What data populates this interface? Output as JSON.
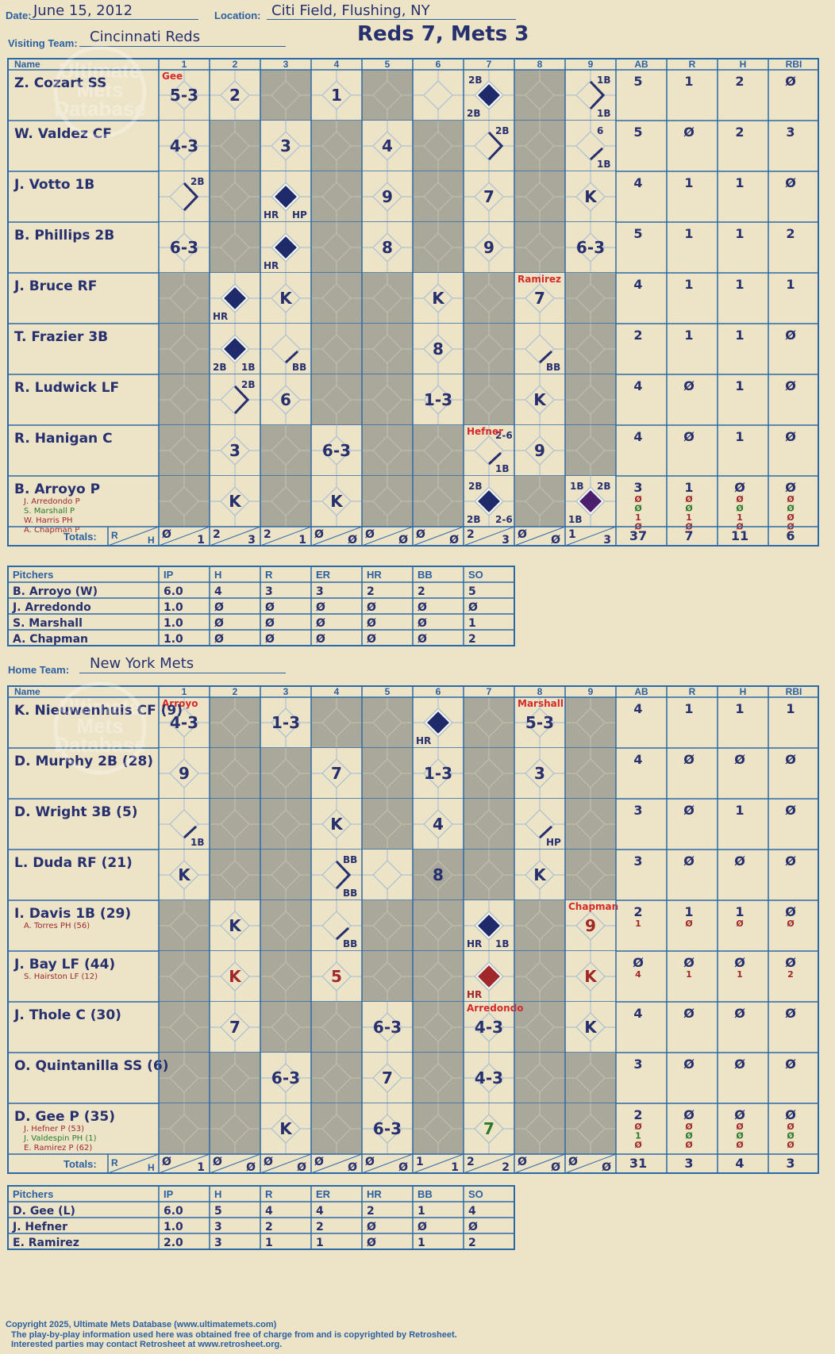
{
  "header": {
    "date_label": "Date:",
    "date": "June 15, 2012",
    "location_label": "Location:",
    "location": "Citi Field, Flushing, NY",
    "score_title": "Reds 7, Mets 3"
  },
  "col_labels": {
    "name": "Name",
    "innings": [
      "1",
      "2",
      "3",
      "4",
      "5",
      "6",
      "7",
      "8",
      "9"
    ],
    "stats": [
      "AB",
      "R",
      "H",
      "RBI"
    ],
    "totals": "Totals:",
    "totals_r": "R",
    "totals_h": "H"
  },
  "pitcher_cols": [
    "Pitchers",
    "IP",
    "H",
    "R",
    "ER",
    "HR",
    "BB",
    "SO"
  ],
  "watermark": "Ultimate Mets Database",
  "visitor": {
    "team_label": "Visiting Team:",
    "team": "Cincinnati Reds",
    "batters": [
      {
        "name": "Z. Cozart SS",
        "subs": [],
        "stats": [
          [
            "5",
            "1",
            "2",
            "Ø"
          ]
        ],
        "cells": [
          {
            "i": 0,
            "t": "5-3",
            "note": "Gee"
          },
          {
            "i": 1,
            "t": "2"
          },
          {
            "i": 3,
            "t": "1"
          },
          {
            "i": 6,
            "diamond": "navy",
            "tl": "2B",
            "bl": "2B"
          },
          {
            "i": 8,
            "path": "r",
            "tr": "1B",
            "br": "1B"
          }
        ]
      },
      {
        "name": "W. Valdez CF",
        "subs": [],
        "stats": [
          [
            "5",
            "Ø",
            "2",
            "3"
          ]
        ],
        "cells": [
          {
            "i": 0,
            "t": "4-3"
          },
          {
            "i": 2,
            "t": "3"
          },
          {
            "i": 4,
            "t": "4"
          },
          {
            "i": 6,
            "path": "r",
            "tr": "2B"
          },
          {
            "i": 8,
            "path": "b",
            "tr": "6",
            "br": "1B"
          }
        ]
      },
      {
        "name": "J. Votto 1B",
        "subs": [],
        "stats": [
          [
            "4",
            "1",
            "1",
            "Ø"
          ]
        ],
        "cells": [
          {
            "i": 0,
            "path": "r",
            "tr": "2B"
          },
          {
            "i": 2,
            "diamond": "navy",
            "bl": "HR",
            "br": "HP"
          },
          {
            "i": 4,
            "t": "9"
          },
          {
            "i": 6,
            "t": "7"
          },
          {
            "i": 8,
            "t": "K"
          }
        ]
      },
      {
        "name": "B. Phillips 2B",
        "subs": [],
        "stats": [
          [
            "5",
            "1",
            "1",
            "2"
          ]
        ],
        "cells": [
          {
            "i": 0,
            "t": "6-3"
          },
          {
            "i": 2,
            "diamond": "navy",
            "bl": "HR"
          },
          {
            "i": 4,
            "t": "8"
          },
          {
            "i": 6,
            "t": "9"
          },
          {
            "i": 8,
            "t": "6-3"
          }
        ]
      },
      {
        "name": "J. Bruce RF",
        "subs": [],
        "stats": [
          [
            "4",
            "1",
            "1",
            "1"
          ]
        ],
        "cells": [
          {
            "i": 1,
            "diamond": "navy",
            "bl": "HR"
          },
          {
            "i": 2,
            "t": "K"
          },
          {
            "i": 5,
            "t": "K"
          },
          {
            "i": 7,
            "t": "7",
            "note": "Ramirez"
          }
        ]
      },
      {
        "name": "T. Frazier 3B",
        "subs": [],
        "stats": [
          [
            "2",
            "1",
            "1",
            "Ø"
          ]
        ],
        "cells": [
          {
            "i": 1,
            "diamond": "navy",
            "bl": "2B",
            "br": "1B"
          },
          {
            "i": 2,
            "path": "b",
            "br": "BB"
          },
          {
            "i": 5,
            "t": "8"
          },
          {
            "i": 7,
            "path": "b",
            "br": "BB"
          }
        ]
      },
      {
        "name": "R. Ludwick LF",
        "subs": [],
        "stats": [
          [
            "4",
            "Ø",
            "1",
            "Ø"
          ]
        ],
        "cells": [
          {
            "i": 1,
            "path": "r",
            "tr": "2B"
          },
          {
            "i": 2,
            "t": "6"
          },
          {
            "i": 5,
            "t": "1-3"
          },
          {
            "i": 7,
            "t": "K"
          }
        ]
      },
      {
        "name": "R. Hanigan C",
        "subs": [],
        "stats": [
          [
            "4",
            "Ø",
            "1",
            "Ø"
          ]
        ],
        "cells": [
          {
            "i": 1,
            "t": "3"
          },
          {
            "i": 3,
            "t": "6-3"
          },
          {
            "i": 6,
            "path": "b",
            "tr": "2-6",
            "br": "1B",
            "note": "Hefner"
          },
          {
            "i": 7,
            "t": "9"
          }
        ]
      },
      {
        "name": "B. Arroyo P",
        "subs": [
          {
            "name": "J. Arredondo P",
            "color": "#a0282a"
          },
          {
            "name": "S. Marshall P",
            "color": "#2d7a2e"
          },
          {
            "name": "W. Harris PH",
            "color": "#a0282a"
          },
          {
            "name": "A. Chapman P",
            "color": "#a0282a"
          }
        ],
        "stats": [
          [
            "3",
            "1",
            "Ø",
            "Ø"
          ],
          [
            "Ø",
            "Ø",
            "Ø",
            "Ø"
          ],
          [
            "Ø",
            "Ø",
            "Ø",
            "Ø"
          ],
          [
            "1",
            "1",
            "1",
            "Ø"
          ],
          [
            "Ø",
            "Ø",
            "Ø",
            "Ø"
          ]
        ],
        "cells": [
          {
            "i": 1,
            "t": "K"
          },
          {
            "i": 3,
            "t": "K"
          },
          {
            "i": 6,
            "diamond": "navy",
            "tl": "2B",
            "bl": "2B",
            "br": "2-6"
          },
          {
            "i": 8,
            "diamond": "purple",
            "tl": "1B",
            "tr": "2B",
            "bl": "1B"
          }
        ]
      }
    ],
    "shaded": [
      [
        2,
        4,
        7
      ],
      [
        1,
        3,
        5,
        7
      ],
      [
        1,
        3,
        5,
        7
      ],
      [
        1,
        3,
        5,
        7
      ],
      [
        0,
        3,
        4,
        6,
        8
      ],
      [
        0,
        3,
        4,
        6,
        8
      ],
      [
        0,
        3,
        4,
        6,
        8
      ],
      [
        0,
        2,
        4,
        5,
        8
      ],
      [
        0,
        2,
        4,
        5,
        7
      ]
    ],
    "totals": [
      [
        "Ø",
        "1"
      ],
      [
        "2",
        "3"
      ],
      [
        "2",
        "1"
      ],
      [
        "Ø",
        "Ø"
      ],
      [
        "Ø",
        "Ø"
      ],
      [
        "Ø",
        "Ø"
      ],
      [
        "2",
        "3"
      ],
      [
        "Ø",
        "Ø"
      ],
      [
        "1",
        "3"
      ]
    ],
    "totals_stats": [
      "37",
      "7",
      "11",
      "6"
    ],
    "pitchers": [
      [
        "B. Arroyo (W)",
        "6.0",
        "4",
        "3",
        "3",
        "2",
        "2",
        "5"
      ],
      [
        "J. Arredondo",
        "1.0",
        "Ø",
        "Ø",
        "Ø",
        "Ø",
        "Ø",
        "Ø"
      ],
      [
        "S. Marshall",
        "1.0",
        "Ø",
        "Ø",
        "Ø",
        "Ø",
        "Ø",
        "1"
      ],
      [
        "A. Chapman",
        "1.0",
        "Ø",
        "Ø",
        "Ø",
        "Ø",
        "Ø",
        "2"
      ]
    ]
  },
  "home": {
    "team_label": "Home Team:",
    "team": "New York Mets",
    "batters": [
      {
        "name": "K. Nieuwenhuis CF (9)",
        "subs": [],
        "stats": [
          [
            "4",
            "1",
            "1",
            "1"
          ]
        ],
        "cells": [
          {
            "i": 0,
            "t": "4-3",
            "note": "Arroyo"
          },
          {
            "i": 2,
            "t": "1-3"
          },
          {
            "i": 5,
            "diamond": "navy",
            "bl": "HR"
          },
          {
            "i": 7,
            "t": "5-3",
            "note": "Marshall"
          }
        ]
      },
      {
        "name": "D. Murphy 2B (28)",
        "subs": [],
        "stats": [
          [
            "4",
            "Ø",
            "Ø",
            "Ø"
          ]
        ],
        "cells": [
          {
            "i": 0,
            "t": "9"
          },
          {
            "i": 3,
            "t": "7"
          },
          {
            "i": 5,
            "t": "1-3"
          },
          {
            "i": 7,
            "t": "3"
          }
        ]
      },
      {
        "name": "D. Wright 3B (5)",
        "subs": [],
        "stats": [
          [
            "3",
            "Ø",
            "1",
            "Ø"
          ]
        ],
        "cells": [
          {
            "i": 0,
            "path": "b",
            "br": "1B"
          },
          {
            "i": 3,
            "t": "K"
          },
          {
            "i": 5,
            "t": "4"
          },
          {
            "i": 7,
            "path": "b",
            "br": "HP"
          }
        ]
      },
      {
        "name": "L. Duda RF (21)",
        "subs": [],
        "stats": [
          [
            "3",
            "Ø",
            "Ø",
            "Ø"
          ]
        ],
        "cells": [
          {
            "i": 0,
            "t": "K"
          },
          {
            "i": 3,
            "path": "r",
            "tr": "BB",
            "br": "BB"
          },
          {
            "i": 5,
            "t": "8"
          },
          {
            "i": 7,
            "t": "K"
          }
        ]
      },
      {
        "name": "I. Davis 1B (29)",
        "subs": [
          {
            "name": "A. Torres PH (56)",
            "color": "#a0282a"
          }
        ],
        "stats": [
          [
            "2",
            "1",
            "1",
            "Ø"
          ],
          [
            "1",
            "Ø",
            "Ø",
            "Ø"
          ]
        ],
        "cells": [
          {
            "i": 1,
            "t": "K"
          },
          {
            "i": 3,
            "path": "b",
            "br": "BB"
          },
          {
            "i": 6,
            "diamond": "navy",
            "bl": "HR",
            "br": "1B"
          },
          {
            "i": 8,
            "t": "9",
            "note": "Chapman",
            "color": "#a0282a"
          }
        ]
      },
      {
        "name": "J. Bay LF (44)",
        "subs": [
          {
            "name": "S. Hairston LF (12)",
            "color": "#a0282a"
          }
        ],
        "stats": [
          [
            "Ø",
            "Ø",
            "Ø",
            "Ø"
          ],
          [
            "4",
            "1",
            "1",
            "2"
          ]
        ],
        "cells": [
          {
            "i": 1,
            "t": "K",
            "color": "#a0282a"
          },
          {
            "i": 3,
            "t": "5",
            "color": "#a0282a"
          },
          {
            "i": 6,
            "diamond": "red",
            "bl": "HR",
            "blcolor": "#a0282a"
          },
          {
            "i": 8,
            "t": "K",
            "color": "#a0282a"
          }
        ]
      },
      {
        "name": "J. Thole C (30)",
        "subs": [],
        "stats": [
          [
            "4",
            "Ø",
            "Ø",
            "Ø"
          ]
        ],
        "cells": [
          {
            "i": 1,
            "t": "7"
          },
          {
            "i": 4,
            "t": "6-3"
          },
          {
            "i": 6,
            "t": "4-3",
            "note": "Arredondo"
          },
          {
            "i": 8,
            "t": "K"
          }
        ]
      },
      {
        "name": "O. Quintanilla SS (6)",
        "subs": [],
        "stats": [
          [
            "3",
            "Ø",
            "Ø",
            "Ø"
          ]
        ],
        "cells": [
          {
            "i": 2,
            "t": "6-3"
          },
          {
            "i": 4,
            "t": "7"
          },
          {
            "i": 6,
            "t": "4-3"
          }
        ]
      },
      {
        "name": "D. Gee P (35)",
        "subs": [
          {
            "name": "J. Hefner P (53)",
            "color": "#a0282a"
          },
          {
            "name": "J. Valdespin PH (1)",
            "color": "#2d7a2e"
          },
          {
            "name": "E. Ramirez P (62)",
            "color": "#a0282a"
          }
        ],
        "stats": [
          [
            "2",
            "Ø",
            "Ø",
            "Ø"
          ],
          [
            "Ø",
            "Ø",
            "Ø",
            "Ø"
          ],
          [
            "1",
            "Ø",
            "Ø",
            "Ø"
          ],
          [
            "Ø",
            "Ø",
            "Ø",
            "Ø"
          ]
        ],
        "cells": [
          {
            "i": 2,
            "t": "K"
          },
          {
            "i": 4,
            "t": "6-3"
          },
          {
            "i": 6,
            "t": "7",
            "color": "#2d7a2e"
          }
        ]
      }
    ],
    "shaded": [
      [
        1,
        3,
        4,
        6,
        8
      ],
      [
        1,
        2,
        4,
        6,
        8
      ],
      [
        1,
        2,
        4,
        6,
        8
      ],
      [
        1,
        2,
        5,
        6,
        8
      ],
      [
        0,
        2,
        4,
        5,
        7
      ],
      [
        0,
        2,
        4,
        5,
        7
      ],
      [
        0,
        2,
        3,
        5,
        7
      ],
      [
        0,
        1,
        3,
        5,
        7,
        8
      ],
      [
        0,
        1,
        3,
        5,
        7,
        8
      ]
    ],
    "totals": [
      [
        "Ø",
        "1"
      ],
      [
        "Ø",
        "Ø"
      ],
      [
        "Ø",
        "Ø"
      ],
      [
        "Ø",
        "Ø"
      ],
      [
        "Ø",
        "Ø"
      ],
      [
        "1",
        "1"
      ],
      [
        "2",
        "2"
      ],
      [
        "Ø",
        "Ø"
      ],
      [
        "Ø",
        "Ø"
      ]
    ],
    "totals_stats": [
      "31",
      "3",
      "4",
      "3"
    ],
    "pitchers": [
      [
        "D. Gee (L)",
        "6.0",
        "5",
        "4",
        "4",
        "2",
        "1",
        "4"
      ],
      [
        "J. Hefner",
        "1.0",
        "3",
        "2",
        "2",
        "Ø",
        "Ø",
        "Ø"
      ],
      [
        "E. Ramirez",
        "2.0",
        "3",
        "1",
        "1",
        "Ø",
        "1",
        "2"
      ]
    ]
  },
  "footer": [
    "Copyright 2025, Ultimate Mets Database (www.ultimatemets.com)",
    "The play-by-play information used here was obtained free of charge from and is copyrighted by Retrosheet.",
    "Interested parties may contact Retrosheet at www.retrosheet.org."
  ]
}
